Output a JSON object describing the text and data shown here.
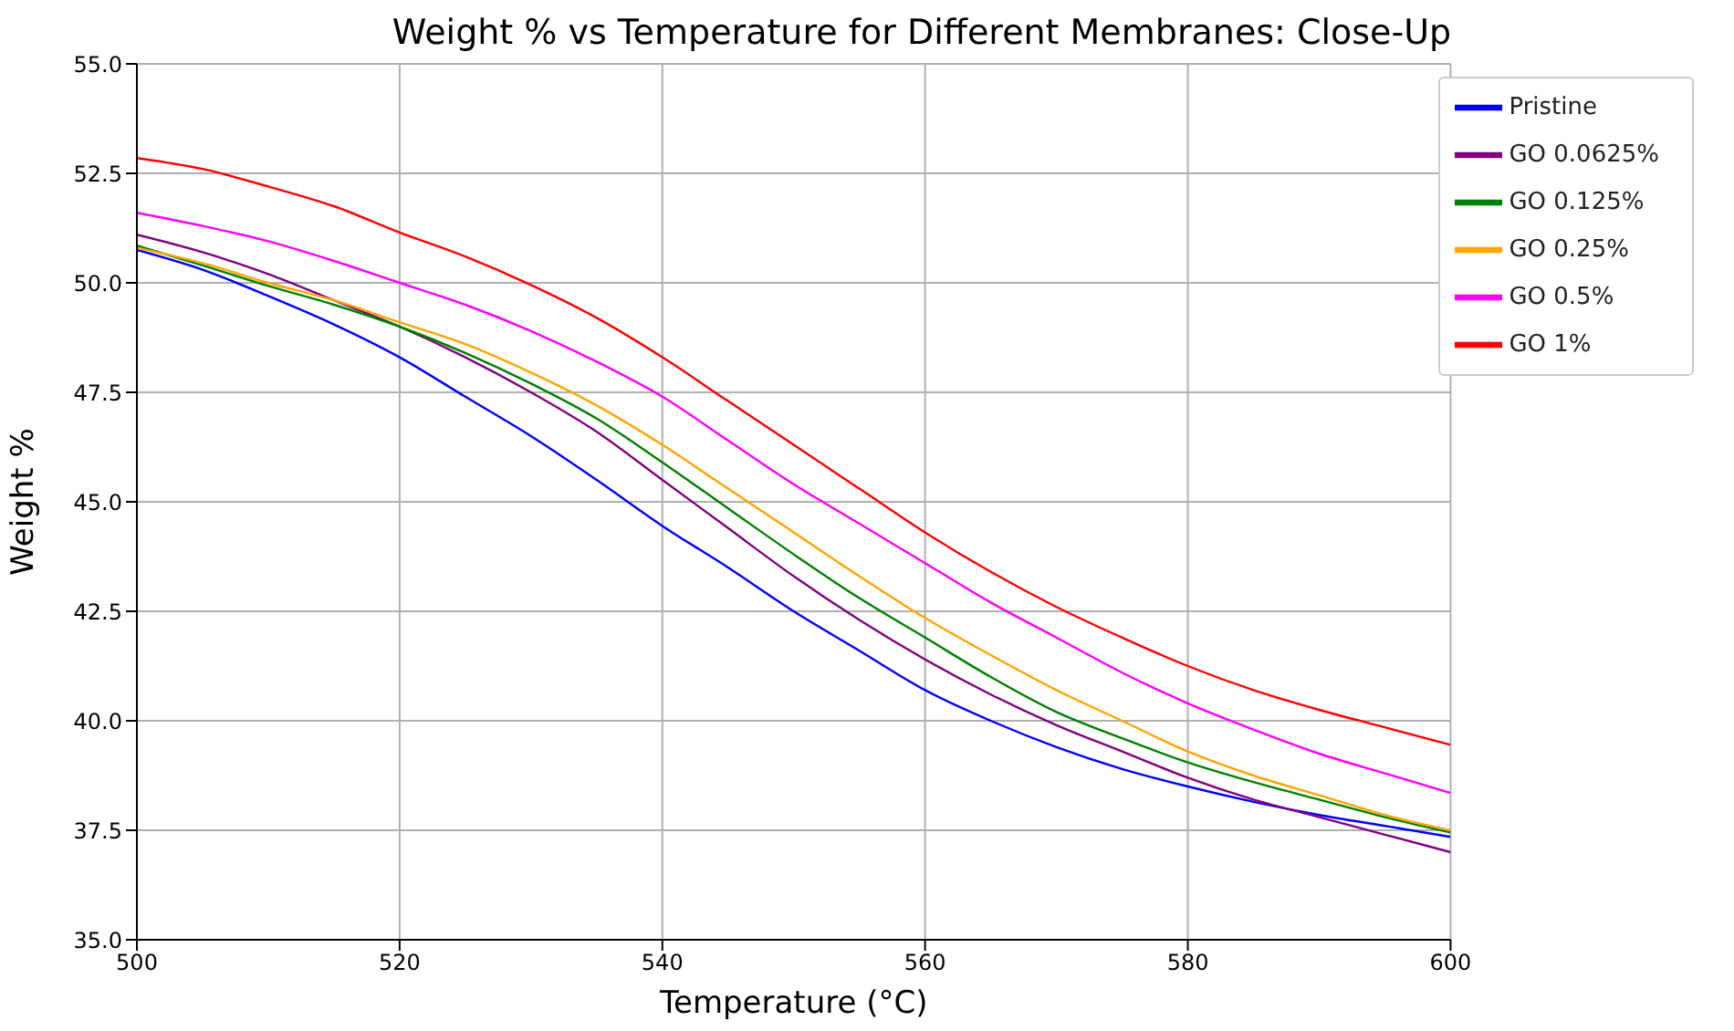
{
  "chart_data": {
    "type": "line",
    "title": "Weight % vs Temperature for Different Membranes: Close-Up",
    "xlabel": "Temperature (°C)",
    "ylabel": "Weight %",
    "x": [
      500,
      505,
      510,
      515,
      520,
      525,
      530,
      535,
      540,
      545,
      550,
      555,
      560,
      565,
      570,
      575,
      580,
      585,
      590,
      595,
      600
    ],
    "xlim": [
      500,
      600
    ],
    "xticks": [
      500,
      520,
      540,
      560,
      580,
      600
    ],
    "ylim": [
      35,
      55
    ],
    "yticks": [
      {
        "value": 35,
        "label": "35.0"
      },
      {
        "value": 37.5,
        "label": "37.5"
      },
      {
        "value": 40,
        "label": "40.0"
      },
      {
        "value": 42.5,
        "label": "42.5"
      },
      {
        "value": 45,
        "label": "45.0"
      },
      {
        "value": 47.5,
        "label": "47.5"
      },
      {
        "value": 50,
        "label": "50.0"
      },
      {
        "value": 52.5,
        "label": "52.5"
      },
      {
        "value": 55,
        "label": "55.0"
      }
    ],
    "grid": true,
    "legend": "top right",
    "line_style": "solid",
    "marker": "none",
    "series": [
      {
        "name": "Pristine",
        "color": "#0000ff",
        "values": [
          50.75,
          50.3,
          49.7,
          49.05,
          48.3,
          47.4,
          46.5,
          45.5,
          44.45,
          43.5,
          42.5,
          41.6,
          40.7,
          40.0,
          39.4,
          38.9,
          38.5,
          38.15,
          37.85,
          37.6,
          37.35
        ]
      },
      {
        "name": "GO 0.0625%",
        "color": "#800080",
        "values": [
          51.1,
          50.7,
          50.2,
          49.6,
          49.0,
          48.3,
          47.5,
          46.6,
          45.5,
          44.4,
          43.3,
          42.3,
          41.4,
          40.6,
          39.9,
          39.3,
          38.7,
          38.2,
          37.8,
          37.4,
          37.0
        ]
      },
      {
        "name": "GO 0.125%",
        "color": "#008000",
        "values": [
          50.85,
          50.4,
          49.93,
          49.5,
          49.0,
          48.4,
          47.7,
          46.9,
          45.9,
          44.85,
          43.8,
          42.8,
          41.9,
          41.0,
          40.2,
          39.6,
          39.05,
          38.6,
          38.2,
          37.8,
          37.45
        ]
      },
      {
        "name": "GO 0.25%",
        "color": "#ffa500",
        "values": [
          50.8,
          50.45,
          50.0,
          49.6,
          49.1,
          48.6,
          47.95,
          47.2,
          46.3,
          45.3,
          44.3,
          43.3,
          42.35,
          41.5,
          40.7,
          40.0,
          39.3,
          38.75,
          38.3,
          37.85,
          37.5
        ]
      },
      {
        "name": "GO 0.5%",
        "color": "#ff00ff",
        "values": [
          51.6,
          51.3,
          50.95,
          50.5,
          50.0,
          49.5,
          48.9,
          48.2,
          47.4,
          46.4,
          45.4,
          44.5,
          43.6,
          42.7,
          41.9,
          41.1,
          40.4,
          39.8,
          39.25,
          38.8,
          38.35
        ]
      },
      {
        "name": "GO 1%",
        "color": "#ff0000",
        "values": [
          52.85,
          52.6,
          52.2,
          51.75,
          51.15,
          50.6,
          49.95,
          49.2,
          48.3,
          47.3,
          46.3,
          45.3,
          44.3,
          43.4,
          42.6,
          41.9,
          41.25,
          40.7,
          40.25,
          39.85,
          39.45
        ]
      }
    ]
  }
}
